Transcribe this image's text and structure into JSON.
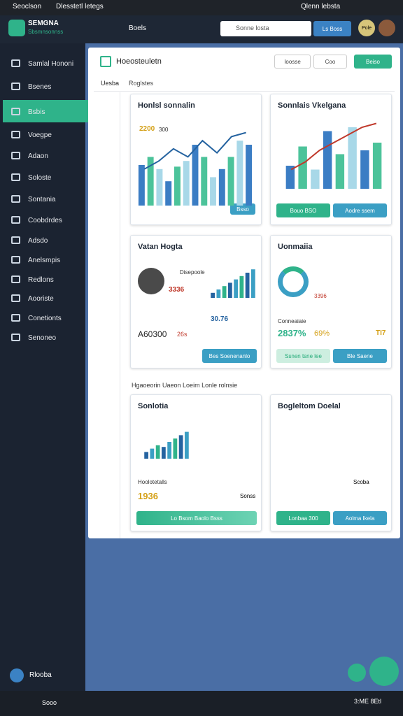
{
  "titlebar": {
    "app": "Seoclson",
    "tab": "Dlesstetl letegs",
    "right": "Qlenn lebsta"
  },
  "header": {
    "logo": "SEMGNA",
    "logo_sub": "Sbsmnsonnss",
    "nav": "Boels",
    "search": "Sonne losta",
    "button": "Ls Boss",
    "avatar": "Pole"
  },
  "sidebar": {
    "items": [
      "Samlal Hononi",
      "Bsenes",
      "Bsbis",
      "Voegpe",
      "Adaon",
      "Soloste",
      "Sontania",
      "Coobdrdes",
      "Adsdo",
      "Anelsmpis",
      "Redlons",
      "Aooriste",
      "Conetionts",
      "Senoneo"
    ],
    "footer": "Rlooba"
  },
  "panel": {
    "title": "Hoeosteuletn",
    "btn1": "Ioosse",
    "btn2": "Coo",
    "btn3": "Beiso",
    "tabs": [
      "Uesba",
      "Roglstes"
    ],
    "section": "Hgaoeorin Uaeon Loeim Lonle rolnsie"
  },
  "cards": [
    {
      "title": "Honlsl sonnalin",
      "value": "2200",
      "value_sub": "300",
      "button": "Bsso",
      "ylim": [
        0,
        100
      ],
      "bars": [
        50,
        60,
        45,
        30,
        48,
        55,
        75,
        60,
        35,
        45,
        60,
        80,
        75
      ],
      "line": [
        45,
        55,
        70,
        60,
        80,
        65,
        85,
        90
      ]
    },
    {
      "title": "Sonnlais Vkelgana",
      "button": "Bouo BSO",
      "button2": "Aodre ssem",
      "ylim": [
        0,
        100
      ],
      "bars": [
        30,
        55,
        25,
        75,
        45,
        80,
        50,
        60
      ],
      "line": [
        25,
        35,
        50,
        60,
        70,
        80,
        85
      ]
    },
    {
      "title": "Vatan Hogta",
      "value": "3336",
      "label": "Disepoole",
      "stat": "30.76",
      "total": "A60300",
      "delta": "26s",
      "button": "Bes Soenenanlo",
      "ylim": [
        0,
        100
      ],
      "bars": [
        15,
        25,
        35,
        45,
        55,
        65,
        75,
        85
      ]
    },
    {
      "title": "Uonmaiia",
      "value": "3396",
      "label": "Conneaiaie",
      "pct": "2837%",
      "pct2": "69%",
      "stat": "TI7",
      "button": "Ssnen tsne lee",
      "button2": "Ble Saene"
    },
    {
      "title": "Sonlotia",
      "label": "Hoolotetalls",
      "value": "1936",
      "extra": "Sonss",
      "button": "Lo Bsom Baolo Bsss",
      "ylim": [
        0,
        100
      ],
      "bars": [
        20,
        30,
        40,
        35,
        50,
        60,
        70,
        80
      ]
    },
    {
      "title": "Bogleltom Doelal",
      "extra": "Scoba",
      "button": "Lonbaa 300",
      "button2": "Aolma Ikela"
    }
  ],
  "taskbar": {
    "app": "Sooo",
    "clock": "3:ME 8Etl"
  }
}
